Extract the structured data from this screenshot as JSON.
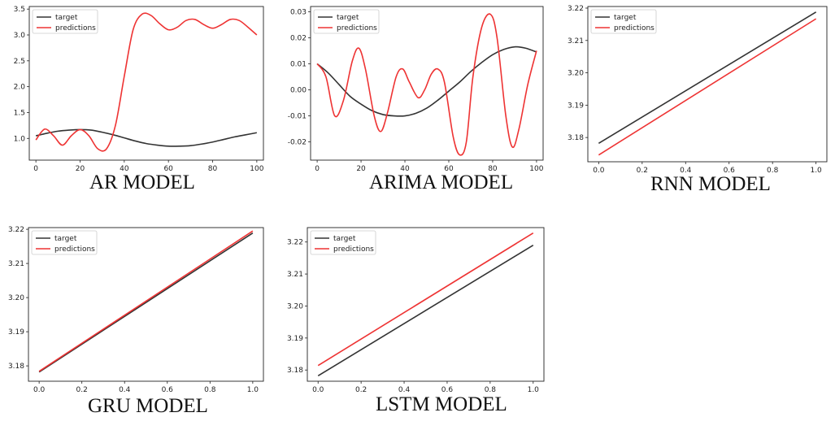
{
  "colors": {
    "target": "#333333",
    "predictions": "#ee3333",
    "axes": "#222222"
  },
  "chart_data": [
    {
      "type": "line",
      "title": "AR MODEL",
      "xlabel": "",
      "ylabel": "",
      "xlim": [
        -3,
        103
      ],
      "ylim": [
        0.58,
        3.55
      ],
      "xticks": [
        0,
        20,
        40,
        60,
        80,
        100
      ],
      "yticks": [
        1.0,
        1.5,
        2.0,
        2.5,
        3.0,
        3.5
      ],
      "ytick_labels": [
        "1.0",
        "1.5",
        "2.0",
        "2.5",
        "3.0",
        "3.5"
      ],
      "xtick_labels": [
        "0",
        "20",
        "40",
        "60",
        "80",
        "100"
      ],
      "legend": "top-left",
      "grid": false,
      "series": [
        {
          "name": "target",
          "x": [
            0,
            5,
            10,
            15,
            20,
            25,
            30,
            35,
            40,
            45,
            50,
            55,
            60,
            65,
            70,
            75,
            80,
            85,
            90,
            95,
            100
          ],
          "values": [
            1.05,
            1.1,
            1.14,
            1.16,
            1.17,
            1.16,
            1.12,
            1.07,
            1.01,
            0.95,
            0.9,
            0.87,
            0.85,
            0.85,
            0.86,
            0.89,
            0.93,
            0.98,
            1.03,
            1.07,
            1.11
          ]
        },
        {
          "name": "predictions",
          "x": [
            0,
            4,
            8,
            12,
            16,
            20,
            24,
            28,
            32,
            36,
            40,
            44,
            48,
            52,
            56,
            60,
            64,
            68,
            72,
            76,
            80,
            84,
            88,
            92,
            96,
            100
          ],
          "values": [
            0.97,
            1.18,
            1.05,
            0.87,
            1.05,
            1.17,
            1.05,
            0.8,
            0.8,
            1.25,
            2.2,
            3.1,
            3.4,
            3.38,
            3.22,
            3.1,
            3.15,
            3.28,
            3.3,
            3.2,
            3.13,
            3.2,
            3.3,
            3.28,
            3.15,
            3.0
          ]
        }
      ]
    },
    {
      "type": "line",
      "title": "ARIMA MODEL",
      "xlabel": "",
      "ylabel": "",
      "xlim": [
        -3,
        103
      ],
      "ylim": [
        -0.027,
        0.032
      ],
      "xticks": [
        0,
        20,
        40,
        60,
        80,
        100
      ],
      "yticks": [
        -0.02,
        -0.01,
        0.0,
        0.01,
        0.02,
        0.03
      ],
      "ytick_labels": [
        "-0.02",
        "-0.01",
        "0.00",
        "0.01",
        "0.02",
        "0.03"
      ],
      "xtick_labels": [
        "0",
        "20",
        "40",
        "60",
        "80",
        "100"
      ],
      "legend": "top-left",
      "grid": false,
      "series": [
        {
          "name": "target",
          "x": [
            0,
            5,
            10,
            15,
            20,
            25,
            30,
            35,
            40,
            45,
            50,
            55,
            60,
            65,
            70,
            75,
            80,
            85,
            90,
            95,
            100
          ],
          "values": [
            0.01,
            0.0065,
            0.002,
            -0.0025,
            -0.0055,
            -0.008,
            -0.0095,
            -0.01,
            -0.01,
            -0.009,
            -0.007,
            -0.004,
            -0.0005,
            0.003,
            0.007,
            0.0105,
            0.0135,
            0.0155,
            0.0165,
            0.016,
            0.0145
          ]
        },
        {
          "name": "predictions",
          "x": [
            0,
            4,
            8,
            12,
            16,
            19,
            22,
            26,
            29,
            32,
            36,
            39,
            42,
            46,
            49,
            52,
            55,
            58,
            62,
            65,
            68,
            71,
            75,
            79,
            82,
            86,
            89,
            92,
            96,
            100
          ],
          "values": [
            0.01,
            0.005,
            -0.01,
            -0.004,
            0.011,
            0.016,
            0.008,
            -0.01,
            -0.016,
            -0.009,
            0.005,
            0.008,
            0.003,
            -0.003,
            0.0,
            0.006,
            0.008,
            0.003,
            -0.018,
            -0.025,
            -0.02,
            0.005,
            0.024,
            0.029,
            0.02,
            -0.01,
            -0.022,
            -0.015,
            0.002,
            0.015
          ]
        }
      ]
    },
    {
      "type": "line",
      "title": "RNN MODEL",
      "xlabel": "",
      "ylabel": "",
      "xlim": [
        -0.05,
        1.05
      ],
      "ylim": [
        3.1725,
        3.2205
      ],
      "xticks": [
        0.0,
        0.2,
        0.4,
        0.6,
        0.8,
        1.0
      ],
      "yticks": [
        3.18,
        3.19,
        3.2,
        3.21,
        3.22
      ],
      "ytick_labels": [
        "3.18",
        "3.19",
        "3.20",
        "3.21",
        "3.22"
      ],
      "xtick_labels": [
        "0.0",
        "0.2",
        "0.4",
        "0.6",
        "0.8",
        "1.0"
      ],
      "legend": "top-left",
      "grid": false,
      "series": [
        {
          "name": "target",
          "x": [
            0.0,
            1.0
          ],
          "values": [
            3.1782,
            3.2188
          ]
        },
        {
          "name": "predictions",
          "x": [
            0.0,
            1.0
          ],
          "values": [
            3.1746,
            3.2167
          ]
        }
      ]
    },
    {
      "type": "line",
      "title": "GRU MODEL",
      "xlabel": "",
      "ylabel": "",
      "xlim": [
        -0.05,
        1.05
      ],
      "ylim": [
        3.1755,
        3.2205
      ],
      "xticks": [
        0.0,
        0.2,
        0.4,
        0.6,
        0.8,
        1.0
      ],
      "yticks": [
        3.18,
        3.19,
        3.2,
        3.21,
        3.22
      ],
      "ytick_labels": [
        "3.18",
        "3.19",
        "3.20",
        "3.21",
        "3.22"
      ],
      "xtick_labels": [
        "0.0",
        "0.2",
        "0.4",
        "0.6",
        "0.8",
        "1.0"
      ],
      "legend": "top-left",
      "grid": false,
      "series": [
        {
          "name": "target",
          "x": [
            0.0,
            1.0
          ],
          "values": [
            3.1782,
            3.2189
          ]
        },
        {
          "name": "predictions",
          "x": [
            0.0,
            1.0
          ],
          "values": [
            3.1784,
            3.2195
          ]
        }
      ]
    },
    {
      "type": "line",
      "title": "LSTM MODEL",
      "xlabel": "",
      "ylabel": "",
      "xlim": [
        -0.05,
        1.05
      ],
      "ylim": [
        3.1765,
        3.2245
      ],
      "xticks": [
        0.0,
        0.2,
        0.4,
        0.6,
        0.8,
        1.0
      ],
      "yticks": [
        3.18,
        3.19,
        3.2,
        3.21,
        3.22
      ],
      "ytick_labels": [
        "3.18",
        "3.19",
        "3.20",
        "3.21",
        "3.22"
      ],
      "xtick_labels": [
        "0.0",
        "0.2",
        "0.4",
        "0.6",
        "0.8",
        "1.0"
      ],
      "legend": "top-left",
      "grid": false,
      "series": [
        {
          "name": "target",
          "x": [
            0.0,
            1.0
          ],
          "values": [
            3.1782,
            3.219
          ]
        },
        {
          "name": "predictions",
          "x": [
            0.0,
            1.0
          ],
          "values": [
            3.1814,
            3.2228
          ]
        }
      ]
    }
  ]
}
